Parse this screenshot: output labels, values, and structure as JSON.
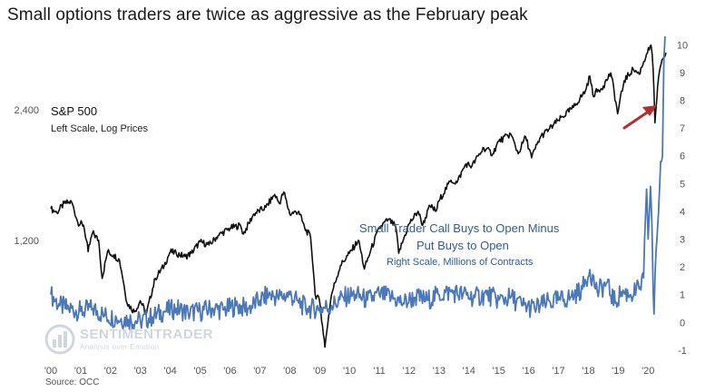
{
  "title": "Small options traders are twice as aggressive  as the February peak",
  "source": "Source: OCC",
  "logo": {
    "text": "SENTIMENTRADER",
    "tagline": "Analysis over Emotion"
  },
  "chart_data": {
    "type": "line",
    "title": "Small options traders are twice as aggressive  as the February peak",
    "x_ticks": [
      "'00",
      "'01",
      "'02",
      "'03",
      "'04",
      "'05",
      "'06",
      "'07",
      "'08",
      "'09",
      "'10",
      "'11",
      "'12",
      "'13",
      "'14",
      "'15",
      "'16",
      "'17",
      "'18",
      "'19",
      "'20"
    ],
    "x_range": [
      2000.0,
      2020.6
    ],
    "left_axis": {
      "label": "Left Scale, Log Prices",
      "scale": "log",
      "ticks": [
        1200,
        2400
      ],
      "tick_labels": [
        "1,200",
        "2,400"
      ],
      "range": [
        650,
        3650
      ]
    },
    "right_axis": {
      "label": "Right Scale, Millions of Contracts",
      "scale": "linear",
      "ticks": [
        -1,
        0,
        1,
        2,
        3,
        4,
        5,
        6,
        7,
        8,
        9,
        10
      ],
      "range": [
        -1.2,
        10.5
      ]
    },
    "annotations": {
      "sp500_title": "S&P 500",
      "sp500_sub": "Left Scale, Log Prices",
      "trader_title_line1": "Small Trader Call Buys to Open  Minus",
      "trader_title_line2": "Put Buys to Open",
      "trader_sub": "Right Scale, Millions of Contracts",
      "arrow_color": "#b22f2f"
    },
    "series": [
      {
        "name": "S&P 500",
        "axis": "left",
        "color": "#111111",
        "points": [
          [
            2000.0,
            1420
          ],
          [
            2000.2,
            1390
          ],
          [
            2000.45,
            1460
          ],
          [
            2000.7,
            1470
          ],
          [
            2000.9,
            1320
          ],
          [
            2001.1,
            1300
          ],
          [
            2001.25,
            1130
          ],
          [
            2001.4,
            1250
          ],
          [
            2001.6,
            1200
          ],
          [
            2001.72,
            980
          ],
          [
            2001.9,
            1130
          ],
          [
            2002.1,
            1110
          ],
          [
            2002.3,
            1080
          ],
          [
            2002.55,
            860
          ],
          [
            2002.8,
            820
          ],
          [
            2003.0,
            870
          ],
          [
            2003.2,
            810
          ],
          [
            2003.5,
            980
          ],
          [
            2003.8,
            1050
          ],
          [
            2004.0,
            1130
          ],
          [
            2004.2,
            1120
          ],
          [
            2004.5,
            1100
          ],
          [
            2004.7,
            1120
          ],
          [
            2005.0,
            1190
          ],
          [
            2005.3,
            1170
          ],
          [
            2005.6,
            1230
          ],
          [
            2006.0,
            1280
          ],
          [
            2006.35,
            1300
          ],
          [
            2006.45,
            1240
          ],
          [
            2006.8,
            1380
          ],
          [
            2007.2,
            1430
          ],
          [
            2007.5,
            1530
          ],
          [
            2007.65,
            1460
          ],
          [
            2007.8,
            1550
          ],
          [
            2008.0,
            1380
          ],
          [
            2008.3,
            1400
          ],
          [
            2008.5,
            1280
          ],
          [
            2008.7,
            1220
          ],
          [
            2008.85,
            900
          ],
          [
            2009.0,
            870
          ],
          [
            2009.1,
            760
          ],
          [
            2009.18,
            680
          ],
          [
            2009.4,
            900
          ],
          [
            2009.7,
            1050
          ],
          [
            2010.0,
            1120
          ],
          [
            2010.3,
            1200
          ],
          [
            2010.5,
            1030
          ],
          [
            2010.7,
            1130
          ],
          [
            2011.0,
            1280
          ],
          [
            2011.3,
            1340
          ],
          [
            2011.55,
            1290
          ],
          [
            2011.65,
            1120
          ],
          [
            2011.8,
            1200
          ],
          [
            2012.0,
            1310
          ],
          [
            2012.3,
            1400
          ],
          [
            2012.45,
            1300
          ],
          [
            2012.7,
            1440
          ],
          [
            2012.9,
            1400
          ],
          [
            2013.0,
            1480
          ],
          [
            2013.4,
            1650
          ],
          [
            2013.6,
            1630
          ],
          [
            2013.9,
            1800
          ],
          [
            2014.1,
            1780
          ],
          [
            2014.5,
            1960
          ],
          [
            2014.8,
            1900
          ],
          [
            2015.0,
            2030
          ],
          [
            2015.4,
            2110
          ],
          [
            2015.65,
            1900
          ],
          [
            2015.9,
            2080
          ],
          [
            2016.1,
            1860
          ],
          [
            2016.4,
            2080
          ],
          [
            2016.7,
            2170
          ],
          [
            2017.0,
            2270
          ],
          [
            2017.5,
            2430
          ],
          [
            2017.9,
            2650
          ],
          [
            2018.05,
            2870
          ],
          [
            2018.15,
            2600
          ],
          [
            2018.5,
            2720
          ],
          [
            2018.75,
            2920
          ],
          [
            2018.98,
            2350
          ],
          [
            2019.2,
            2800
          ],
          [
            2019.5,
            2980
          ],
          [
            2019.7,
            2900
          ],
          [
            2019.95,
            3230
          ],
          [
            2020.1,
            3380
          ],
          [
            2020.17,
            2980
          ],
          [
            2020.23,
            2240
          ],
          [
            2020.35,
            2850
          ],
          [
            2020.5,
            3150
          ],
          [
            2020.6,
            3250
          ]
        ]
      },
      {
        "name": "Small Trader Call Buys to Open Minus Put Buys to Open",
        "axis": "right",
        "color": "#4a78b8",
        "points": [
          [
            2000.0,
            1.0
          ],
          [
            2000.3,
            0.6
          ],
          [
            2000.6,
            0.5
          ],
          [
            2001.0,
            0.4
          ],
          [
            2001.4,
            0.5
          ],
          [
            2001.8,
            0.25
          ],
          [
            2002.2,
            0.15
          ],
          [
            2002.6,
            0.1
          ],
          [
            2003.0,
            0.05
          ],
          [
            2003.4,
            0.2
          ],
          [
            2003.8,
            0.4
          ],
          [
            2004.2,
            0.5
          ],
          [
            2004.6,
            0.35
          ],
          [
            2005.0,
            0.4
          ],
          [
            2005.4,
            0.5
          ],
          [
            2005.8,
            0.45
          ],
          [
            2006.2,
            0.6
          ],
          [
            2006.6,
            0.5
          ],
          [
            2007.0,
            0.8
          ],
          [
            2007.3,
            1.0
          ],
          [
            2007.6,
            0.9
          ],
          [
            2008.0,
            1.0
          ],
          [
            2008.3,
            0.7
          ],
          [
            2008.6,
            0.5
          ],
          [
            2009.0,
            0.5
          ],
          [
            2009.4,
            0.6
          ],
          [
            2009.8,
            0.9
          ],
          [
            2010.2,
            1.0
          ],
          [
            2010.6,
            0.8
          ],
          [
            2011.0,
            1.0
          ],
          [
            2011.4,
            0.9
          ],
          [
            2011.8,
            0.7
          ],
          [
            2012.2,
            0.9
          ],
          [
            2012.6,
            0.8
          ],
          [
            2013.0,
            1.0
          ],
          [
            2013.4,
            1.1
          ],
          [
            2013.8,
            1.0
          ],
          [
            2014.2,
            0.9
          ],
          [
            2014.6,
            1.0
          ],
          [
            2015.0,
            0.8
          ],
          [
            2015.4,
            0.9
          ],
          [
            2015.8,
            0.6
          ],
          [
            2016.2,
            0.5
          ],
          [
            2016.6,
            0.7
          ],
          [
            2017.0,
            0.8
          ],
          [
            2017.4,
            0.9
          ],
          [
            2017.8,
            1.2
          ],
          [
            2018.05,
            1.9
          ],
          [
            2018.3,
            1.1
          ],
          [
            2018.6,
            1.4
          ],
          [
            2018.9,
            0.7
          ],
          [
            2019.1,
            1.1
          ],
          [
            2019.4,
            1.0
          ],
          [
            2019.7,
            1.2
          ],
          [
            2019.85,
            1.6
          ],
          [
            2019.95,
            4.8
          ],
          [
            2020.0,
            3.0
          ],
          [
            2020.08,
            4.9
          ],
          [
            2020.13,
            3.5
          ],
          [
            2020.17,
            1.2
          ],
          [
            2020.2,
            0.3
          ],
          [
            2020.27,
            2.6
          ],
          [
            2020.35,
            4.0
          ],
          [
            2020.42,
            5.8
          ],
          [
            2020.48,
            6.0
          ],
          [
            2020.53,
            9.5
          ],
          [
            2020.57,
            10.3
          ]
        ]
      }
    ]
  }
}
